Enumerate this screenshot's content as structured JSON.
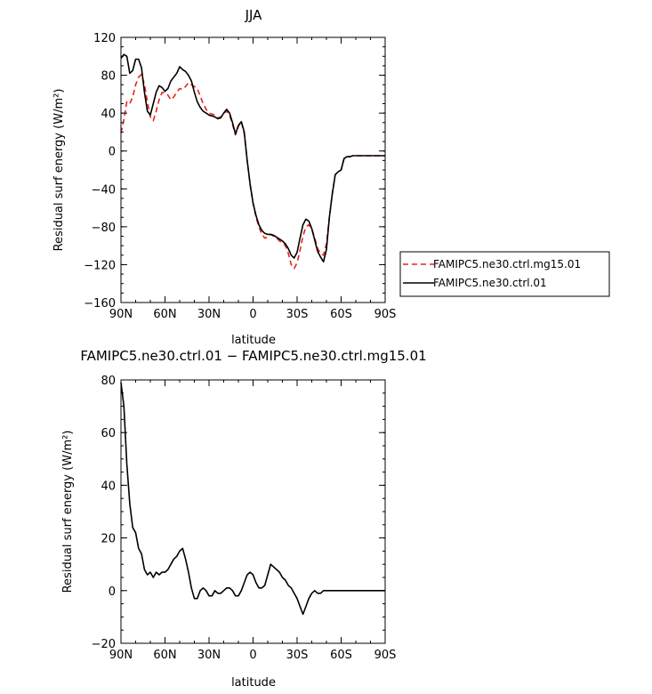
{
  "chart_data": [
    {
      "type": "line",
      "title": "JJA",
      "xlabel": "latitude",
      "ylabel": "Residual surf energy (W/m²)",
      "x_ticks": [
        90,
        60,
        30,
        0,
        -30,
        -60,
        -90
      ],
      "x_tick_labels": [
        "90N",
        "60N",
        "30N",
        "0",
        "30S",
        "60S",
        "90S"
      ],
      "xlim": [
        90,
        -90
      ],
      "y_ticks": [
        120,
        80,
        40,
        0,
        -40,
        -80,
        -120,
        -160
      ],
      "y_tick_labels": [
        "120",
        "80",
        "40",
        "0",
        "−40",
        "−80",
        "−120",
        "−160"
      ],
      "ylim": [
        -160,
        120
      ],
      "legend_position": "right",
      "series": [
        {
          "name": "FAMIPC5.ne30.ctrl.mg15.01",
          "color": "#e8211b",
          "dash": "dashed",
          "x": [
            90,
            88,
            86,
            84,
            82,
            80,
            78,
            76,
            74,
            72,
            70,
            68,
            66,
            64,
            62,
            60,
            58,
            56,
            54,
            52,
            50,
            48,
            46,
            44,
            42,
            40,
            38,
            36,
            34,
            32,
            30,
            28,
            26,
            24,
            22,
            20,
            18,
            16,
            14,
            12,
            10,
            8,
            6,
            4,
            2,
            0,
            -2,
            -4,
            -6,
            -8,
            -10,
            -12,
            -14,
            -16,
            -18,
            -20,
            -22,
            -24,
            -26,
            -28,
            -30,
            -32,
            -34,
            -36,
            -38,
            -40,
            -42,
            -44,
            -46,
            -48,
            -50,
            -52,
            -54,
            -56,
            -58,
            -60,
            -62,
            -64,
            -66,
            -68,
            -70,
            -72,
            -74,
            -76,
            -78,
            -80,
            -82,
            -84,
            -86,
            -88,
            -90
          ],
          "values": [
            19,
            33,
            52,
            50,
            57,
            70,
            78,
            81,
            70,
            52,
            36,
            32,
            42,
            54,
            62,
            61,
            59,
            54,
            57,
            62,
            66,
            65,
            68,
            72,
            70,
            68,
            66,
            58,
            50,
            44,
            40,
            39,
            38,
            35,
            36,
            40,
            42,
            38,
            28,
            17,
            26,
            31,
            18,
            -10,
            -36,
            -55,
            -70,
            -80,
            -88,
            -92,
            -91,
            -88,
            -90,
            -92,
            -95,
            -97,
            -100,
            -108,
            -120,
            -124,
            -118,
            -105,
            -90,
            -80,
            -78,
            -82,
            -92,
            -103,
            -108,
            -110,
            -98,
            -70,
            -45,
            -25,
            -22,
            -20,
            -8,
            -6,
            -6,
            -5,
            -5,
            -5,
            -5,
            -5,
            -5,
            -5,
            -5,
            -5,
            -5,
            -5,
            -5
          ]
        },
        {
          "name": "FAMIPC5.ne30.ctrl.01",
          "color": "#000000",
          "dash": "solid",
          "x": [
            90,
            88,
            86,
            84,
            82,
            80,
            78,
            76,
            74,
            72,
            70,
            68,
            66,
            64,
            62,
            60,
            58,
            56,
            54,
            52,
            50,
            48,
            46,
            44,
            42,
            40,
            38,
            36,
            34,
            32,
            30,
            28,
            26,
            24,
            22,
            20,
            18,
            16,
            14,
            12,
            10,
            8,
            6,
            4,
            2,
            0,
            -2,
            -4,
            -6,
            -8,
            -10,
            -12,
            -14,
            -16,
            -18,
            -20,
            -22,
            -24,
            -26,
            -28,
            -30,
            -32,
            -34,
            -36,
            -38,
            -40,
            -42,
            -44,
            -46,
            -48,
            -50,
            -52,
            -54,
            -56,
            -58,
            -60,
            -62,
            -64,
            -66,
            -68,
            -70,
            -72,
            -74,
            -76,
            -78,
            -80,
            -82,
            -84,
            -86,
            -88,
            -90
          ],
          "values": [
            98,
            102,
            100,
            82,
            85,
            97,
            97,
            88,
            62,
            42,
            38,
            50,
            62,
            69,
            67,
            63,
            66,
            74,
            78,
            82,
            89,
            86,
            84,
            80,
            74,
            62,
            52,
            46,
            42,
            40,
            38,
            37,
            36,
            34,
            35,
            40,
            44,
            40,
            30,
            18,
            27,
            31,
            20,
            -10,
            -35,
            -55,
            -68,
            -78,
            -84,
            -87,
            -88,
            -88,
            -89,
            -91,
            -93,
            -95,
            -98,
            -103,
            -110,
            -113,
            -107,
            -92,
            -78,
            -72,
            -74,
            -82,
            -94,
            -106,
            -112,
            -117,
            -104,
            -70,
            -45,
            -25,
            -22,
            -20,
            -8,
            -6,
            -6,
            -5,
            -5,
            -5,
            -5,
            -5,
            -5,
            -5,
            -5,
            -5,
            -5,
            -5,
            -5
          ]
        }
      ]
    },
    {
      "type": "line",
      "title": "FAMIPC5.ne30.ctrl.01 − FAMIPC5.ne30.ctrl.mg15.01",
      "xlabel": "latitude",
      "ylabel": "Residual surf energy (W/m²)",
      "x_ticks": [
        90,
        60,
        30,
        0,
        -30,
        -60,
        -90
      ],
      "x_tick_labels": [
        "90N",
        "60N",
        "30N",
        "0",
        "30S",
        "60S",
        "90S"
      ],
      "xlim": [
        90,
        -90
      ],
      "y_ticks": [
        80,
        60,
        40,
        20,
        0,
        -20
      ],
      "y_tick_labels": [
        "80",
        "60",
        "40",
        "20",
        "0",
        "−20"
      ],
      "ylim": [
        -20,
        80
      ],
      "series": [
        {
          "color": "#000000",
          "dash": "solid",
          "x": [
            90,
            88,
            86,
            84,
            82,
            80,
            78,
            76,
            74,
            72,
            70,
            68,
            66,
            64,
            62,
            60,
            58,
            56,
            54,
            52,
            50,
            48,
            46,
            44,
            42,
            40,
            38,
            36,
            34,
            32,
            30,
            28,
            26,
            24,
            22,
            20,
            18,
            16,
            14,
            12,
            10,
            8,
            6,
            4,
            2,
            0,
            -2,
            -4,
            -6,
            -8,
            -10,
            -12,
            -14,
            -16,
            -18,
            -20,
            -22,
            -24,
            -26,
            -28,
            -30,
            -32,
            -34,
            -36,
            -38,
            -40,
            -42,
            -44,
            -46,
            -48,
            -50,
            -52,
            -54,
            -56,
            -58,
            -60,
            -62,
            -64,
            -66,
            -68,
            -70,
            -72,
            -74,
            -76,
            -78,
            -80,
            -82,
            -84,
            -86,
            -88,
            -90
          ],
          "values": [
            79,
            70,
            48,
            33,
            24,
            22,
            16,
            14,
            8,
            6,
            7,
            5,
            7,
            6,
            7,
            7,
            8,
            10,
            12,
            13,
            15,
            16,
            12,
            7,
            1,
            -3,
            -3,
            0,
            1,
            0,
            -2,
            -2,
            0,
            -1,
            -1,
            0,
            1,
            1,
            0,
            -2,
            -2,
            0,
            3,
            6,
            7,
            6,
            3,
            1,
            1,
            2,
            6,
            10,
            9,
            8,
            7,
            5,
            4,
            2,
            1,
            -1,
            -3,
            -6,
            -9,
            -6,
            -3,
            -1,
            0,
            -1,
            -1,
            0,
            0,
            0,
            0,
            0,
            0,
            0,
            0,
            0,
            0,
            0,
            0,
            0,
            0,
            0,
            0,
            0,
            0,
            0,
            0,
            0,
            0
          ]
        }
      ]
    }
  ]
}
